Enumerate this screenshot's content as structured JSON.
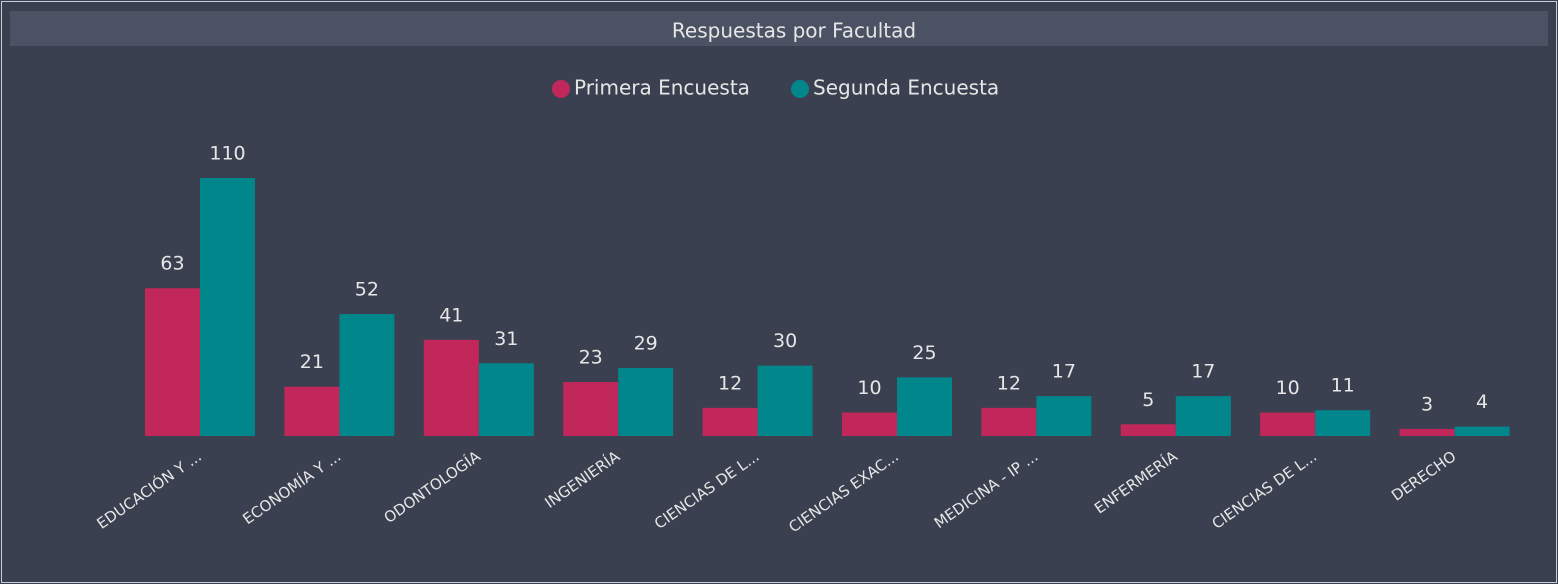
{
  "chart_data": {
    "type": "bar",
    "title": "Respuestas por Facultad",
    "categories": [
      "EDUCACIÓN Y ...",
      "ECONOMÍA Y ...",
      "ODONTOLOGÍA",
      "INGENIERÍA",
      "CIENCIAS DE L...",
      "CIENCIAS EXAC...",
      "MEDICINA - IP ...",
      "ENFERMERÍA",
      "CIENCIAS DE L...",
      "DERECHO"
    ],
    "series": [
      {
        "name": "Primera Encuesta",
        "color": "#c2275b",
        "values": [
          63,
          21,
          41,
          23,
          12,
          10,
          12,
          5,
          10,
          3
        ]
      },
      {
        "name": "Segunda Encuesta",
        "color": "#00868b",
        "values": [
          110,
          52,
          31,
          29,
          30,
          25,
          17,
          17,
          11,
          4
        ]
      }
    ],
    "legend": "top"
  }
}
